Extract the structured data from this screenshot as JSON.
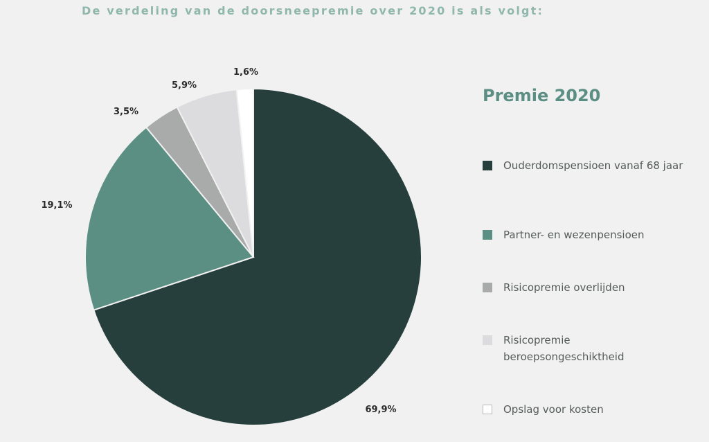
{
  "heading": "De verdeling van de doorsneepremie over 2020 is als volgt:",
  "chart_data": {
    "type": "pie",
    "title": "Premie 2020",
    "categories": [
      "Ouderdomspensioen vanaf 68 jaar",
      "Partner- en wezenpensioen",
      "Risicopremie overlijden",
      "Risicopremie beroepsongeschiktheid",
      "Opslag voor kosten"
    ],
    "values": [
      69.9,
      19.1,
      3.5,
      5.9,
      1.6
    ],
    "value_labels": [
      "69,9%",
      "19,1%",
      "3,5%",
      "5,9%",
      "1,6%"
    ],
    "colors": [
      "#263f3c",
      "#5c8f84",
      "#a9aaaa",
      "#dcdcde",
      "#ffffff"
    ],
    "start": "12 o'clock",
    "direction": "clockwise",
    "legend_position": "right"
  },
  "legend": {
    "title": "Premie 2020",
    "items": [
      {
        "label": "Ouderdomspensioen vanaf 68 jaar",
        "color": "#263f3c"
      },
      {
        "label": "Partner- en wezenpensioen",
        "color": "#5c8f84"
      },
      {
        "label": "Risicopremie overlijden",
        "color": "#a9aaaa"
      },
      {
        "label": "Risicopremie beroepsongeschiktheid",
        "color": "#dcdcde"
      },
      {
        "label": "Opslag voor kosten",
        "color": "#ffffff"
      }
    ]
  }
}
